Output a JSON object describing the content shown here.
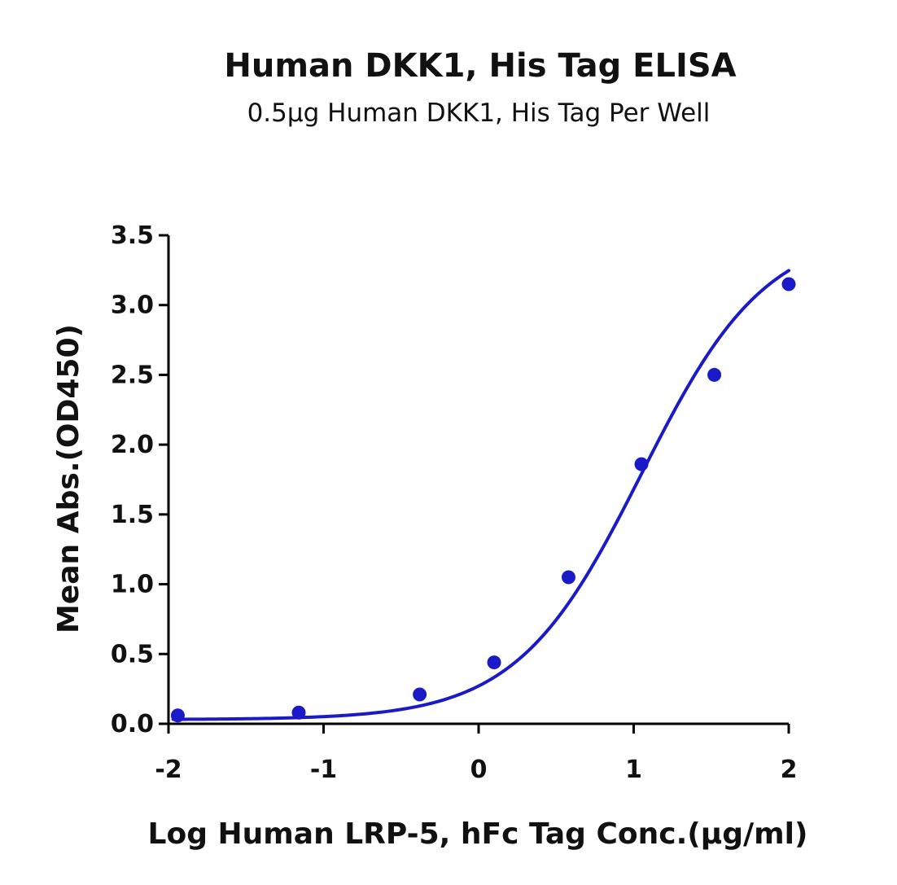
{
  "chart_data": {
    "type": "scatter",
    "title": "Human DKK1, His Tag ELISA",
    "subtitle": "0.5µg Human DKK1, His Tag Per Well",
    "xlabel": "Log Human LRP-5, hFc Tag Conc.(µg/ml)",
    "ylabel": "Mean Abs.(OD450)",
    "xlim": [
      -2,
      2
    ],
    "ylim": [
      0,
      3.5
    ],
    "x_ticks": [
      -2,
      -1,
      0,
      1,
      2
    ],
    "x_tick_labels": [
      "-2",
      "-1",
      "0",
      "1",
      "2"
    ],
    "y_ticks": [
      0,
      0.5,
      1,
      1.5,
      2,
      2.5,
      3,
      3.5
    ],
    "y_tick_labels": [
      "0.0",
      "0.5",
      "1.0",
      "1.5",
      "2.0",
      "2.5",
      "3.0",
      "3.5"
    ],
    "grid": false,
    "legend": "none",
    "color": "#1a1ac8",
    "series": [
      {
        "points": [
          {
            "x": -1.94,
            "y": 0.06
          },
          {
            "x": -1.16,
            "y": 0.08
          },
          {
            "x": -0.38,
            "y": 0.21
          },
          {
            "x": 0.1,
            "y": 0.44
          },
          {
            "x": 0.58,
            "y": 1.05
          },
          {
            "x": 1.05,
            "y": 1.86
          },
          {
            "x": 1.52,
            "y": 2.5
          },
          {
            "x": 2.0,
            "y": 3.15
          }
        ],
        "fit": {
          "model": "4PL",
          "bottom": 0.03,
          "top": 3.55,
          "log_ec50": 1.05,
          "hill": 1.08,
          "x_range": [
            -1.97,
            2.0
          ]
        }
      }
    ]
  }
}
